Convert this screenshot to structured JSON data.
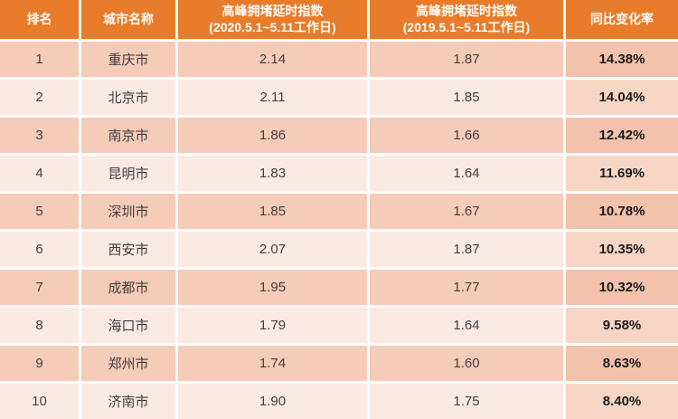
{
  "colors": {
    "header_bg": "#E87C2A",
    "header_text": "#FFFFFF",
    "row_dark_bg": "#F5CBB9",
    "row_dark_last_bg": "#F2C2AD",
    "row_light_bg": "#FBEAE4",
    "row_light_last_bg": "#F7D5C5",
    "body_text": "#3F3F3F",
    "pct_text": "#1A1A1A"
  },
  "header": {
    "rank": "排名",
    "city": "城市名称",
    "idx2020_line1": "高峰拥堵延时指数",
    "idx2020_line2": "(2020.5.1~5.11工作日)",
    "idx2019_line1": "高峰拥堵延时指数",
    "idx2019_line2": "(2019.5.1~5.11工作日)",
    "yoy": "同比变化率"
  },
  "chart_data": {
    "type": "table",
    "columns": [
      "排名",
      "城市名称",
      "高峰拥堵延时指数(2020.5.1~5.11工作日)",
      "高峰拥堵延时指数(2019.5.1~5.11工作日)",
      "同比变化率"
    ],
    "rows": [
      [
        "1",
        "重庆市",
        "2.14",
        "1.87",
        "14.38%"
      ],
      [
        "2",
        "北京市",
        "2.11",
        "1.85",
        "14.04%"
      ],
      [
        "3",
        "南京市",
        "1.86",
        "1.66",
        "12.42%"
      ],
      [
        "4",
        "昆明市",
        "1.83",
        "1.64",
        "11.69%"
      ],
      [
        "5",
        "深圳市",
        "1.85",
        "1.67",
        "10.78%"
      ],
      [
        "6",
        "西安市",
        "2.07",
        "1.87",
        "10.35%"
      ],
      [
        "7",
        "成都市",
        "1.95",
        "1.77",
        "10.32%"
      ],
      [
        "8",
        "海口市",
        "1.79",
        "1.64",
        "9.58%"
      ],
      [
        "9",
        "郑州市",
        "1.74",
        "1.60",
        "8.63%"
      ],
      [
        "10",
        "济南市",
        "1.90",
        "1.75",
        "8.40%"
      ]
    ]
  }
}
